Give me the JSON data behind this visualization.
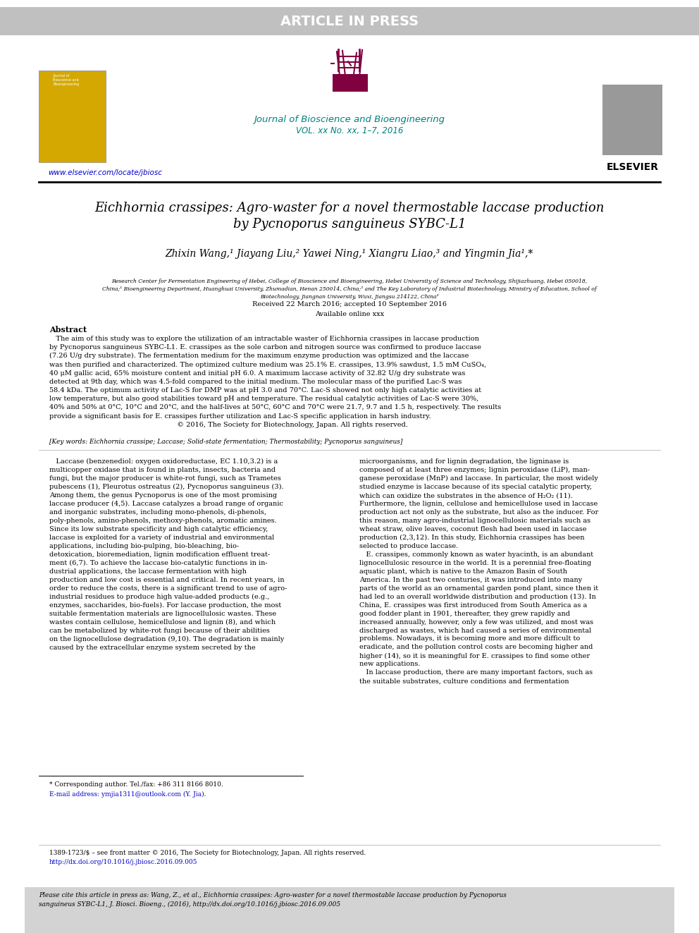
{
  "banner_text": "ARTICLE IN PRESS",
  "banner_bg": "#c0c0c0",
  "banner_text_color": "#ffffff",
  "journal_name": "Journal of Bioscience and Bioengineering",
  "journal_vol": "VOL. xx No. xx, 1–7, 2016",
  "journal_color": "#008080",
  "elsevier_color": "#000000",
  "url_text": "www.elsevier.com/locate/jbiosc",
  "url_color": "#0000cd",
  "title_line1": "Eichhornia crassipes: Agro-waster for a novel thermostable laccase production",
  "title_line2": "by Pycnoporus sanguineus SYBC-L1",
  "title_italic_parts": [
    "Eichhornia crassipes",
    "Pycnoporus sanguineus"
  ],
  "authors": "Zhixin Wang,¹ Jiayang Liu,² Yawei Ning,¹ Xiangru Liao,³ and Yingmin Jia¹,*",
  "affiliation": "Research Center for Fermentation Engineering of Hebei, College of Bioscience and Bioengineering, Hebei University of Science and Technology, Shijiazhuang, Hebei 050018, China;¹ Bioengineering Department, Huanghuai University, Zhumadian, Henan 250014, China;² and The Key Laboratory of Industrial Biotechnology, Ministry of Education, School of Biotechnology, Jiangnan University, Wuxi, Jiangsu 214122, China³",
  "received": "Received 22 March 2016; accepted 10 September 2016",
  "available": "Available online xxx",
  "abstract_title": "Abstract",
  "abstract_text": "The aim of this study was to explore the utilization of an intractable waster of Eichhornia crassipes in laccase production by Pycnoporus sanguineus SYBC-L1. E. crassipes as the sole carbon and nitrogen source was confirmed to produce laccase (7.26 U/g dry substrate). The fermentation medium for the maximum enzyme production was optimized and the laccase was then purified and characterized. The optimized culture medium was 25.1% E. crassipes, 13.9% sawdust, 1.5 mM CuSO₄, 40 μM gallic acid, 65% moisture content and initial pH 6.0. A maximum laccase activity of 32.82 U/g dry substrate was detected at 9th day, which was 4.5-fold compared to the initial medium. The molecular mass of the purified Lac-S was 58.4 kDa. The optimum activity of Lac-S for DMP was at pH 3.0 and 70°C. Lac-S showed not only high catalytic activities at low temperature, but also good stabilities toward pH and temperature. The residual catalytic activities of Lac-S were 30%, 40% and 50% at 0°C, 10°C and 20°C, and the half-lives at 50°C, 60°C and 70°C were 21.7, 9.7 and 1.5 h, respectively. The results provide a significant basis for E. crassipes further utilization and Lac-S specific application in harsh industry.",
  "copyright": "© 2016, The Society for Biotechnology, Japan. All rights reserved.",
  "keywords": "[Key words: Eichhornia crassipe; Laccase; Solid-state fermentation; Thermostability; Pycnoporus sanguineus]",
  "body_col1": "Laccase (benzenediol: oxygen oxidoreductase, EC 1.10.3.2) is a multicopper oxidase that is found in plants, insects, bacteria and fungi, but the major producer is white-rot fungi, such as Trametes pubescens (1), Pleurotus ostreatus (2), Pycnoporus sanguineus (3). Among them, the genus Pycnoporus is one of the most promising laccase producer (4,5). Laccase catalyzes a broad range of organic and inorganic substrates, including mono-phenols, di-phenols, poly-phenols, amino-phenols, methoxy-phenols, aromatic amines. Since its low substrate specificity and high catalytic efficiency, laccase is exploited for a variety of industrial and environmental applications, including bio-pulping, bio-bleaching, bio-detoxication, bioremediation, lignin modification effluent treatment (6,7). To achieve the laccase bio-catalytic functions in industrial applications, the laccase fermentation with high production and low cost is essential and critical. In recent years, in order to reduce the costs, there is a significant trend to use of agro-industrial residues to produce high value-added products (e.g., enzymes, saccharides, bio-fuels). For laccase production, the most suitable fermentation materials are lignocellulosic wastes. These wastes contain cellulose, hemicellulose and lignin (8), and which can be metabolized by white-rot fungi because of their abilities on the lignocellulose degradation (9,10). The degradation is mainly caused by the extracellular enzyme system secreted by the",
  "body_col2": "microorganisms, and for lignin degradation, the ligninase is composed of at least three enzymes; lignin peroxidase (LiP), manganese peroxidase (MnP) and laccase. In particular, the most widely studied enzyme is laccase because of its special catalytic property, which can oxidize the substrates in the absence of H₂O₂ (11). Furthermore, the lignin, cellulose and hemicellulose used in laccase production act not only as the substrate, but also as the inducer. For this reason, many agro-industrial lignocellulosic materials such as wheat straw, olive leaves, coconut flesh had been used in laccase production (2,3,12). In this study, Eichhornia crassipes has been selected to produce laccase.\n    E. crassipes, commonly known as water hyacinth, is an abundant lignocellulosic resource in the world. It is a perennial free-floating aquatic plant, which is native to the Amazon Basin of South America. In the past two centuries, it was introduced into many parts of the world as an ornamental garden pond plant, since then it had led to an overall worldwide distribution and production (13). In China, E. crassipes was first introduced from South America as a good fodder plant in 1901, thereafter, they grew rapidly and increased annually, however, only a few was utilized, and most was discharged as wastes, which had caused a series of environmental problems. Nowadays, it is becoming more and more difficult to eradicate, and the pollution control costs are becoming higher and higher (14), so it is meaningful for E. crassipes to find some other new applications.\n    In laccase production, there are many important factors, such as the suitable substrates, culture conditions and fermentation",
  "footnote1": "* Corresponding author. Tel./fax: +86 311 8166 8010.",
  "footnote2": "E-mail address: ymjia1311@outlook.com (Y. Jia).",
  "footer_issn": "1389-1723/$ – see front matter © 2016, The Society for Biotechnology, Japan. All rights reserved.",
  "footer_doi": "http://dx.doi.org/10.1016/j.jbiosc.2016.09.005",
  "footer_cite": "Please cite this article in press as: Wang, Z., et al., Eichhornia crassipes: Agro-waster for a novel thermostable laccase production by Pycnoporus sanguineus SYBC-L1, J. Biosci. Bioeng., (2016), http://dx.doi.org/10.1016/j.jbiosc.2016.09.005",
  "bg_color": "#ffffff",
  "text_color": "#000000",
  "footer_bg": "#d3d3d3"
}
